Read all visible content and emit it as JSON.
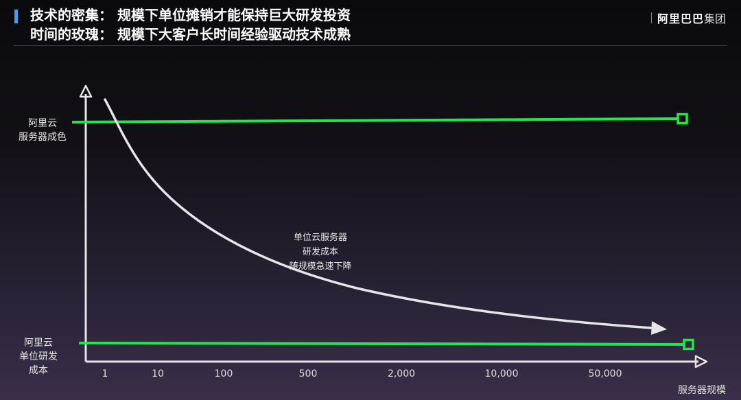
{
  "header": {
    "title_line1": "技术的密集： 规模下单位摊销才能保持巨大研发投资",
    "title_line2": "时间的玫瑰： 规模下大客户长时间经验驱动技术成熟",
    "logo_text": "阿里巴巴",
    "logo_sub": "集团"
  },
  "colors": {
    "accent": "#2aa8ff",
    "line_green": "#1ee84a",
    "curve": "#e6e6ea",
    "axis": "#e6e6ea"
  },
  "chart_data": {
    "type": "line",
    "title": "",
    "xlabel": "服务器规模",
    "ylabel": "",
    "x_categories": [
      "1",
      "10",
      "100",
      "500",
      "2,000",
      "10,000",
      "50,000"
    ],
    "ylim": [
      0,
      1
    ],
    "series": [
      {
        "name": "阿里云服务器成色",
        "label_lines": [
          "阿里云",
          "服务器成色"
        ],
        "values": [
          0.93,
          0.935,
          0.94,
          0.945,
          0.95,
          0.955,
          0.96
        ]
      },
      {
        "name": "阿里云单位研发成本",
        "label_lines": [
          "阿里云",
          "单位研发",
          "成本"
        ],
        "values": [
          0.07,
          0.069,
          0.068,
          0.067,
          0.066,
          0.065,
          0.064
        ]
      },
      {
        "name": "单位云服务器研发成本",
        "values": [
          0.95,
          0.55,
          0.34,
          0.24,
          0.16,
          0.12,
          0.1
        ]
      }
    ],
    "annotation": {
      "lines": [
        "单位云服务器",
        "研发成本",
        "随规模急速下降"
      ]
    }
  }
}
